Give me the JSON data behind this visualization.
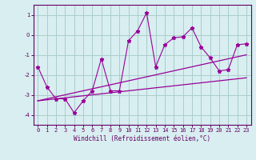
{
  "xlabel": "Windchill (Refroidissement éolien,°C)",
  "x_values": [
    0,
    1,
    2,
    3,
    4,
    5,
    6,
    7,
    8,
    9,
    10,
    11,
    12,
    13,
    14,
    15,
    16,
    17,
    18,
    19,
    20,
    21,
    22,
    23
  ],
  "y_scatter": [
    -1.6,
    -2.6,
    -3.2,
    -3.2,
    -3.9,
    -3.3,
    -2.8,
    -1.2,
    -2.8,
    -2.8,
    -0.3,
    0.2,
    1.1,
    -1.6,
    -0.5,
    -0.15,
    -0.1,
    0.35,
    -0.6,
    -1.15,
    -1.8,
    -1.75,
    -0.5,
    -0.45
  ],
  "y_line1": [
    -3.3,
    -3.25,
    -3.2,
    -3.15,
    -3.1,
    -3.05,
    -3.0,
    -2.95,
    -2.9,
    -2.85,
    -2.8,
    -2.75,
    -2.7,
    -2.65,
    -2.6,
    -2.55,
    -2.5,
    -2.45,
    -2.4,
    -2.35,
    -2.3,
    -2.25,
    -2.2,
    -2.15
  ],
  "y_line2": [
    -3.3,
    -3.2,
    -3.1,
    -3.0,
    -2.9,
    -2.8,
    -2.7,
    -2.6,
    -2.5,
    -2.4,
    -2.3,
    -2.2,
    -2.1,
    -2.0,
    -1.9,
    -1.8,
    -1.7,
    -1.6,
    -1.5,
    -1.4,
    -1.3,
    -1.2,
    -1.1,
    -1.0
  ],
  "line_color": "#990099",
  "bg_color": "#d8eef0",
  "grid_color": "#aacccc",
  "axis_color": "#660066",
  "ylim": [
    -4.5,
    1.5
  ],
  "xlim": [
    -0.5,
    23.5
  ],
  "yticks": [
    -4,
    -3,
    -2,
    -1,
    0,
    1
  ],
  "xticks": [
    0,
    1,
    2,
    3,
    4,
    5,
    6,
    7,
    8,
    9,
    10,
    11,
    12,
    13,
    14,
    15,
    16,
    17,
    18,
    19,
    20,
    21,
    22,
    23
  ]
}
